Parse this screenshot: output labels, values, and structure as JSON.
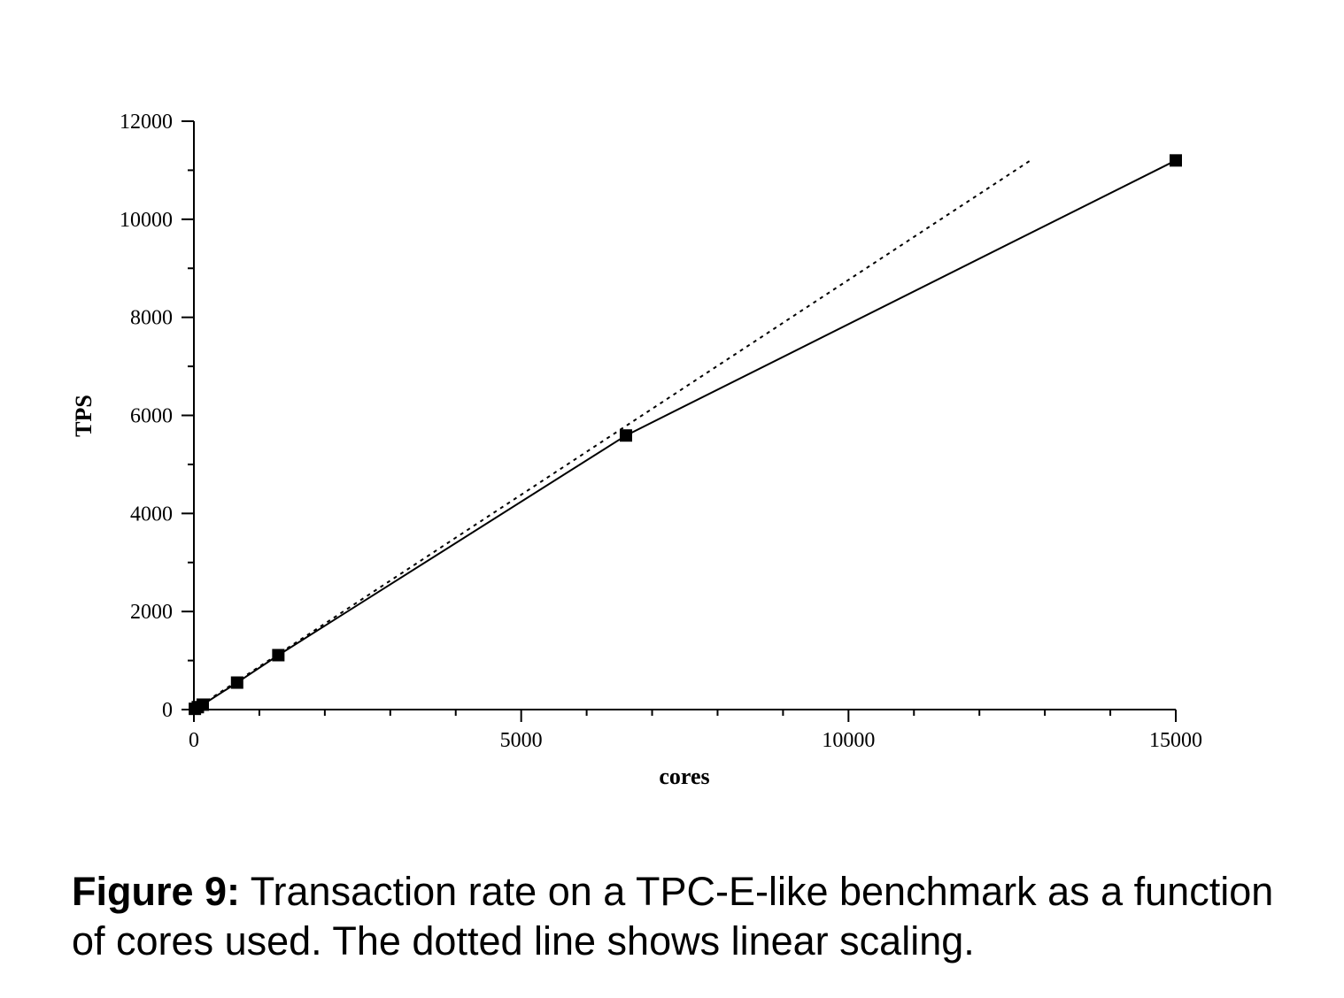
{
  "chart_data": {
    "type": "line",
    "title": "",
    "xlabel": "cores",
    "ylabel": "TPS",
    "xlim": [
      0,
      15000
    ],
    "ylim": [
      0,
      12000
    ],
    "x_ticks": [
      0,
      5000,
      10000,
      15000
    ],
    "y_ticks": [
      0,
      2000,
      4000,
      6000,
      8000,
      10000,
      12000
    ],
    "x_tick_labels": [
      "0",
      "5000",
      "10000",
      "15000"
    ],
    "y_tick_labels": [
      "0",
      "2000",
      "4000",
      "6000",
      "8000",
      "10000",
      "12000"
    ],
    "grid": false,
    "legend": "none",
    "series": [
      {
        "style": "solid",
        "marker": "square",
        "color": "#000000",
        "x": [
          15,
          60,
          135,
          660,
          1290,
          6600,
          15000
        ],
        "y": [
          15,
          50,
          100,
          550,
          1110,
          5590,
          11200
        ]
      },
      {
        "style": "dotted",
        "marker": "none",
        "color": "#000000",
        "x": [
          0,
          12780
        ],
        "y": [
          0,
          11200
        ]
      }
    ]
  },
  "caption": {
    "label": "Figure 9:",
    "text": " Transaction rate on a TPC-E-like benchmark as a function of cores used. The dotted line shows linear scaling."
  }
}
